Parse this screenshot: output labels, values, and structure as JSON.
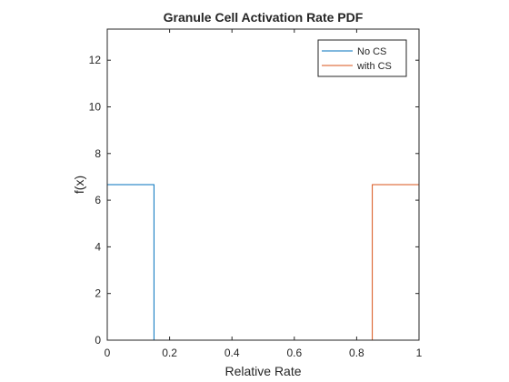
{
  "chart_data": {
    "type": "line",
    "title": "Granule Cell Activation Rate PDF",
    "xlabel": "Relative Rate",
    "ylabel": "f(x)",
    "xlim": [
      0,
      1
    ],
    "ylim": [
      0,
      13.333
    ],
    "xticks": [
      0,
      0.2,
      0.4,
      0.6,
      0.8,
      1
    ],
    "xtick_labels": [
      "0",
      "0.2",
      "0.4",
      "0.6",
      "0.8",
      "1"
    ],
    "yticks": [
      0,
      2,
      4,
      6,
      8,
      10,
      12
    ],
    "ytick_labels": [
      "0",
      "2",
      "4",
      "6",
      "8",
      "10",
      "12"
    ],
    "grid": false,
    "legend_position": "top-right",
    "series": [
      {
        "name": "No CS",
        "color": "#0072BD",
        "x": [
          0,
          0,
          0.15,
          0.15,
          1
        ],
        "y": [
          0,
          6.667,
          6.667,
          0,
          0
        ]
      },
      {
        "name": "with CS",
        "color": "#D95319",
        "x": [
          0,
          0.85,
          0.85,
          1
        ],
        "y": [
          0,
          0,
          6.667,
          6.667
        ]
      }
    ]
  }
}
